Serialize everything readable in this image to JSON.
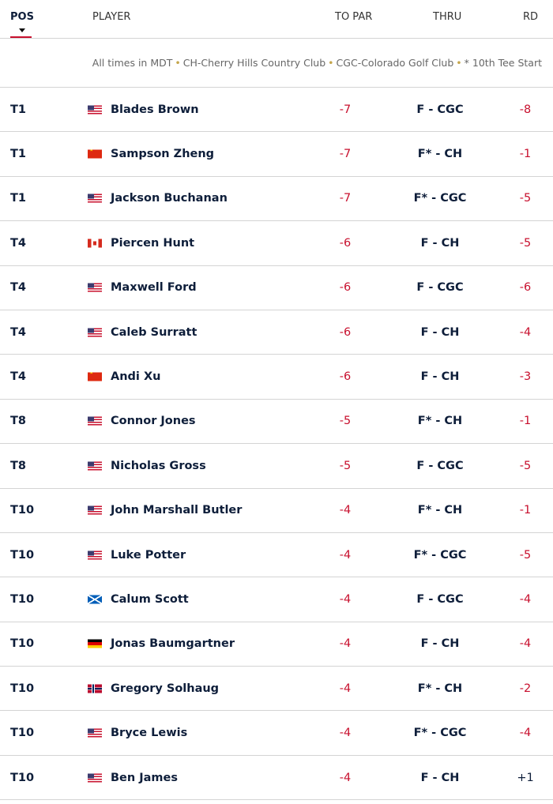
{
  "header": {
    "pos": "POS",
    "player": "PLAYER",
    "to_par": "TO PAR",
    "thru": "THRU",
    "rd": "RD"
  },
  "note": {
    "parts": [
      "All times in MDT",
      "CH-Cherry Hills Country Club",
      "CGC-Colorado Golf Club",
      "* 10th Tee Start"
    ]
  },
  "colors": {
    "under_par": "#c8102e",
    "sort_underline": "#c8102e",
    "text": "#0e1e3a"
  },
  "rows": [
    {
      "pos": "T1",
      "flag": "us",
      "name": "Blades Brown",
      "to_par": "-7",
      "thru": "F - CGC",
      "rd": "-8"
    },
    {
      "pos": "T1",
      "flag": "cn",
      "name": "Sampson Zheng",
      "to_par": "-7",
      "thru": "F* - CH",
      "rd": "-1"
    },
    {
      "pos": "T1",
      "flag": "us",
      "name": "Jackson Buchanan",
      "to_par": "-7",
      "thru": "F* - CGC",
      "rd": "-5"
    },
    {
      "pos": "T4",
      "flag": "ca",
      "name": "Piercen Hunt",
      "to_par": "-6",
      "thru": "F - CH",
      "rd": "-5"
    },
    {
      "pos": "T4",
      "flag": "us",
      "name": "Maxwell Ford",
      "to_par": "-6",
      "thru": "F - CGC",
      "rd": "-6"
    },
    {
      "pos": "T4",
      "flag": "us",
      "name": "Caleb Surratt",
      "to_par": "-6",
      "thru": "F - CH",
      "rd": "-4"
    },
    {
      "pos": "T4",
      "flag": "cn",
      "name": "Andi Xu",
      "to_par": "-6",
      "thru": "F - CH",
      "rd": "-3"
    },
    {
      "pos": "T8",
      "flag": "us",
      "name": "Connor Jones",
      "to_par": "-5",
      "thru": "F* - CH",
      "rd": "-1"
    },
    {
      "pos": "T8",
      "flag": "us",
      "name": "Nicholas Gross",
      "to_par": "-5",
      "thru": "F - CGC",
      "rd": "-5"
    },
    {
      "pos": "T10",
      "flag": "us",
      "name": "John Marshall Butler",
      "to_par": "-4",
      "thru": "F* - CH",
      "rd": "-1"
    },
    {
      "pos": "T10",
      "flag": "us",
      "name": "Luke Potter",
      "to_par": "-4",
      "thru": "F* - CGC",
      "rd": "-5"
    },
    {
      "pos": "T10",
      "flag": "sco",
      "name": "Calum Scott",
      "to_par": "-4",
      "thru": "F - CGC",
      "rd": "-4"
    },
    {
      "pos": "T10",
      "flag": "de",
      "name": "Jonas Baumgartner",
      "to_par": "-4",
      "thru": "F - CH",
      "rd": "-4"
    },
    {
      "pos": "T10",
      "flag": "no",
      "name": "Gregory Solhaug",
      "to_par": "-4",
      "thru": "F* - CH",
      "rd": "-2"
    },
    {
      "pos": "T10",
      "flag": "us",
      "name": "Bryce Lewis",
      "to_par": "-4",
      "thru": "F* - CGC",
      "rd": "-4"
    },
    {
      "pos": "T10",
      "flag": "us",
      "name": "Ben James",
      "to_par": "-4",
      "thru": "F - CH",
      "rd": "+1"
    }
  ]
}
